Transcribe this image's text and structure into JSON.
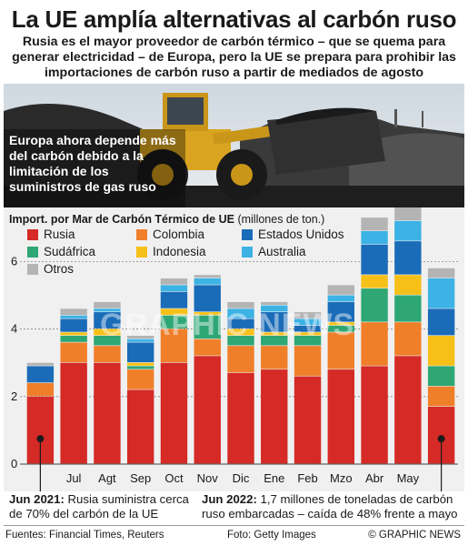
{
  "header": {
    "title": "La UE amplía alternativas al carbón ruso",
    "subtitle": "Rusia es el mayor proveedor de carbón térmico – que se quema para generar electricidad – de Europa, pero la UE se prepara para prohibir las importaciones de carbón ruso a partir de mediados de agosto"
  },
  "photo": {
    "caption": "Europa ahora depende más del carbón debido a la limitación de los suministros de gas ruso"
  },
  "colors": {
    "Rusia": "#d52a26",
    "Colombia": "#f07f2a",
    "Sudáfrica": "#2ea775",
    "Indonesia": "#f6c019",
    "Estados Unidos": "#1a6cb8",
    "Australia": "#3cb2e5",
    "Otros": "#b4b4b4"
  },
  "chart_data": {
    "type": "bar",
    "stacked": true,
    "title_bold": "Import. por Mar de Carbón Térmico de UE",
    "title_unit": "(millones de ton.)",
    "categories": [
      "",
      "Jul",
      "Agt",
      "Sep",
      "Oct",
      "Nov",
      "Dic",
      "Ene",
      "Feb",
      "Mzo",
      "Abr",
      "May",
      ""
    ],
    "ylim": [
      0,
      7.6
    ],
    "yticks": [
      0,
      2,
      4,
      6
    ],
    "grid": true,
    "legend_placement": "top-left",
    "series": [
      {
        "name": "Rusia",
        "values": [
          2.0,
          3.0,
          3.0,
          2.2,
          3.0,
          3.2,
          2.7,
          2.8,
          2.6,
          2.8,
          2.9,
          3.2,
          1.7
        ]
      },
      {
        "name": "Colombia",
        "values": [
          0.4,
          0.6,
          0.5,
          0.6,
          1.0,
          0.5,
          0.8,
          0.7,
          0.9,
          1.1,
          1.3,
          1.0,
          0.6
        ]
      },
      {
        "name": "Sudáfrica",
        "values": [
          0.0,
          0.2,
          0.3,
          0.1,
          0.4,
          0.7,
          0.3,
          0.3,
          0.3,
          0.2,
          1.0,
          0.8,
          0.6
        ]
      },
      {
        "name": "Indonesia",
        "values": [
          0.0,
          0.1,
          0.2,
          0.1,
          0.2,
          0.1,
          0.2,
          0.1,
          0.1,
          0.1,
          0.4,
          0.6,
          0.9
        ]
      },
      {
        "name": "Estados Unidos",
        "values": [
          0.5,
          0.4,
          0.5,
          0.6,
          0.5,
          0.8,
          0.3,
          0.6,
          0.2,
          0.6,
          0.9,
          1.0,
          0.8
        ]
      },
      {
        "name": "Australia",
        "values": [
          0.0,
          0.1,
          0.1,
          0.1,
          0.2,
          0.2,
          0.3,
          0.2,
          0.2,
          0.2,
          0.4,
          0.6,
          0.9
        ]
      },
      {
        "name": "Otros",
        "values": [
          0.1,
          0.2,
          0.2,
          0.1,
          0.2,
          0.1,
          0.2,
          0.1,
          0.2,
          0.3,
          0.4,
          0.4,
          0.3
        ]
      }
    ],
    "highlight_bars": [
      0,
      12
    ],
    "watermark": "GRAPHIC NEWS"
  },
  "notes": {
    "left_label": "Jun 2021:",
    "left_text": " Rusia suministra cerca de 70% del carbón de la UE",
    "right_label": "Jun 2022:",
    "right_text": " 1,7 millones de toneladas de carbón ruso embarcadas – caída de 48% frente a mayo"
  },
  "footer": {
    "sources": "Fuentes: Financial Times, Reuters",
    "photo": "Foto: Getty Images",
    "credit": "© GRAPHIC NEWS"
  }
}
